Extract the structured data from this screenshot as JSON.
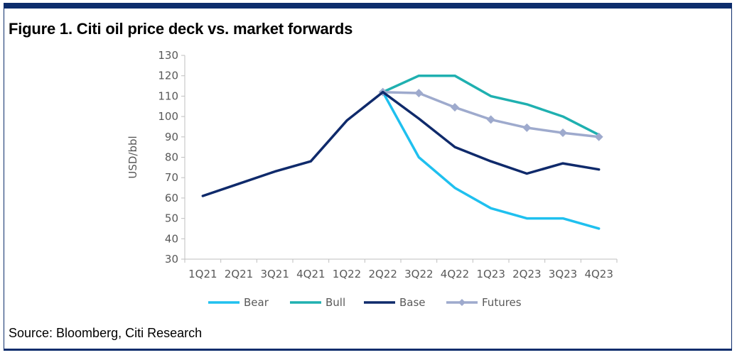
{
  "figure": {
    "title": "Figure 1. Citi oil price deck vs. market forwards",
    "source": "Source: Bloomberg, Citi Research"
  },
  "chart_data": {
    "type": "line",
    "title": "Figure 1. Citi oil price deck vs. market forwards",
    "xlabel": "",
    "ylabel": "USD/bbl",
    "ylim": [
      30,
      130
    ],
    "yticks": [
      30,
      40,
      50,
      60,
      70,
      80,
      90,
      100,
      110,
      120,
      130
    ],
    "categories": [
      "1Q21",
      "2Q21",
      "3Q21",
      "4Q21",
      "1Q22",
      "2Q22",
      "3Q22",
      "4Q22",
      "1Q23",
      "2Q23",
      "3Q23",
      "4Q23"
    ],
    "history": {
      "x": [
        0,
        1,
        2,
        3,
        4,
        5
      ],
      "values": [
        61,
        67,
        73,
        78,
        98,
        112
      ]
    },
    "series": [
      {
        "name": "Bear",
        "color": "#1fc0ef",
        "marker": "none",
        "x": [
          5,
          6,
          7,
          8,
          9,
          10,
          11
        ],
        "values": [
          112,
          80,
          65,
          55,
          50,
          50,
          45
        ]
      },
      {
        "name": "Bull",
        "color": "#1fb0b0",
        "marker": "none",
        "x": [
          5,
          6,
          7,
          8,
          9,
          10,
          11
        ],
        "values": [
          112,
          120,
          120,
          110,
          106,
          100,
          91
        ]
      },
      {
        "name": "Base",
        "color": "#0f2a6b",
        "marker": "none",
        "x": [
          5,
          6,
          7,
          8,
          9,
          10,
          11
        ],
        "values": [
          112,
          99,
          85,
          78,
          72,
          77,
          74
        ]
      },
      {
        "name": "Futures",
        "color": "#9eaacd",
        "marker": "diamond",
        "x": [
          5,
          6,
          7,
          8,
          9,
          10,
          11
        ],
        "values": [
          112,
          111.5,
          104.5,
          98.5,
          94.5,
          92,
          90
        ]
      }
    ],
    "legend": "bottom",
    "grid": false
  }
}
